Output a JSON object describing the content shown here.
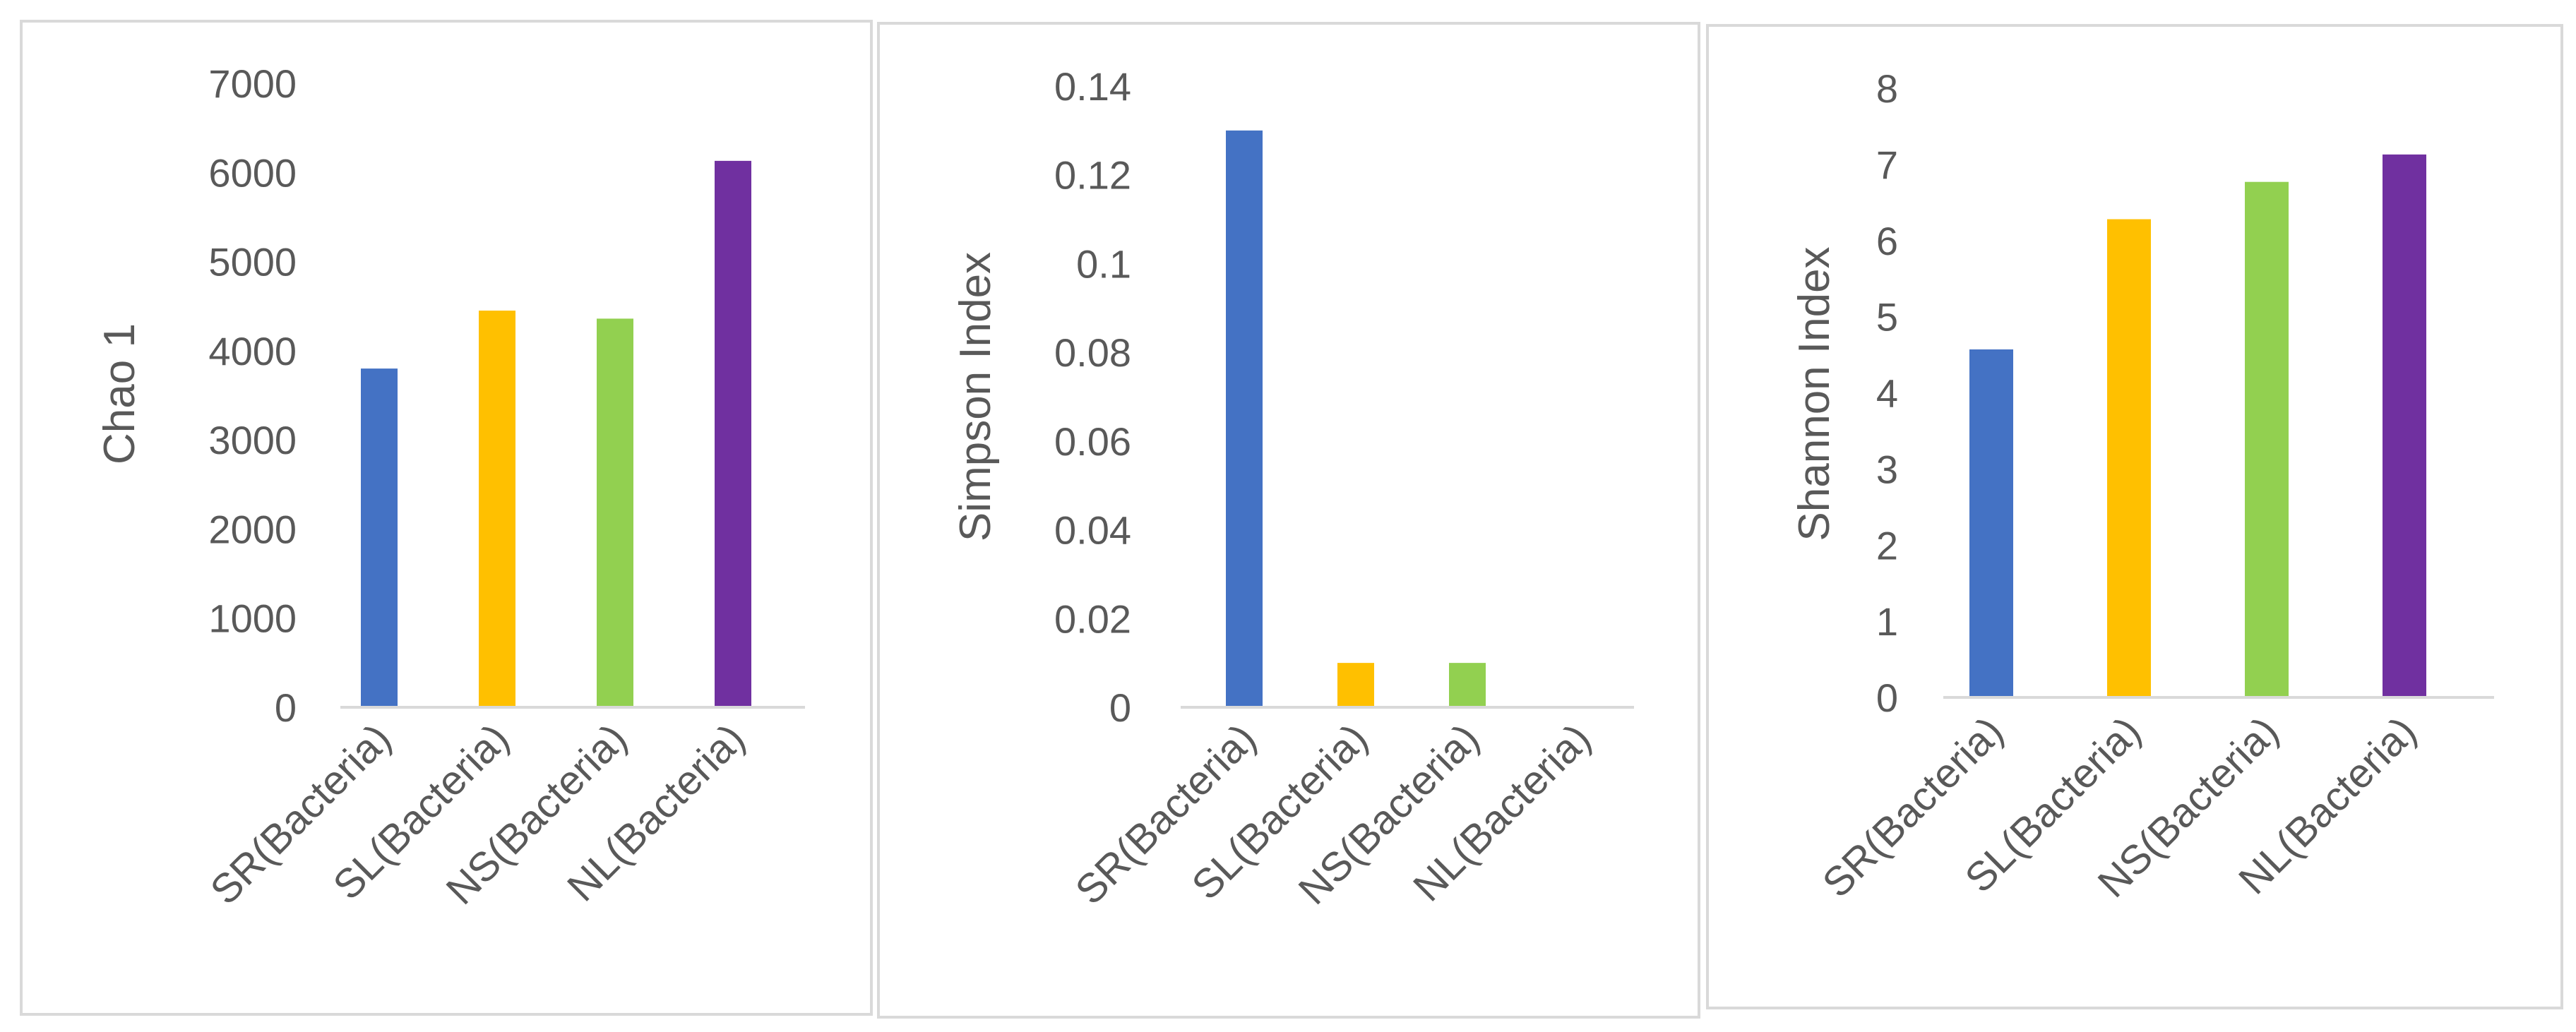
{
  "colors": {
    "panel_border": "#d9d9d9",
    "axis_line": "#d9d9d9",
    "text": "#595959",
    "bar_colors": [
      "#4472c4",
      "#ffc000",
      "#92d050",
      "#7030a0"
    ]
  },
  "chart_data": [
    {
      "type": "bar",
      "title": "",
      "xlabel": "",
      "ylabel": "Chao 1",
      "categories": [
        "SR(Bacteria)",
        "SL(Bacteria)",
        "NS(Bacteria)",
        "NL(Bacteria)"
      ],
      "values": [
        3800,
        4450,
        4360,
        6130
      ],
      "ylim": [
        0,
        7000
      ],
      "yticks": [
        "0",
        "1000",
        "2000",
        "3000",
        "4000",
        "5000",
        "6000",
        "7000"
      ],
      "grid": false,
      "legend": "none"
    },
    {
      "type": "bar",
      "title": "",
      "xlabel": "",
      "ylabel": "Simpson Index",
      "categories": [
        "SR(Bacteria)",
        "SL(Bacteria)",
        "NS(Bacteria)",
        "NL(Bacteria)"
      ],
      "values": [
        0.13,
        0.01,
        0.01,
        0.0
      ],
      "ylim": [
        0,
        0.14
      ],
      "yticks": [
        "0",
        "0.02",
        "0.04",
        "0.06",
        "0.08",
        "0.1",
        "0.12",
        "0.14"
      ],
      "grid": false,
      "legend": "none"
    },
    {
      "type": "bar",
      "title": "",
      "xlabel": "",
      "ylabel": "Shannon Index",
      "categories": [
        "SR(Bacteria)",
        "SL(Bacteria)",
        "NS(Bacteria)",
        "NL(Bacteria)"
      ],
      "values": [
        4.57,
        6.28,
        6.77,
        7.13
      ],
      "ylim": [
        0,
        8
      ],
      "yticks": [
        "0",
        "1",
        "2",
        "3",
        "4",
        "5",
        "6",
        "7",
        "8"
      ],
      "grid": false,
      "legend": "none"
    }
  ]
}
